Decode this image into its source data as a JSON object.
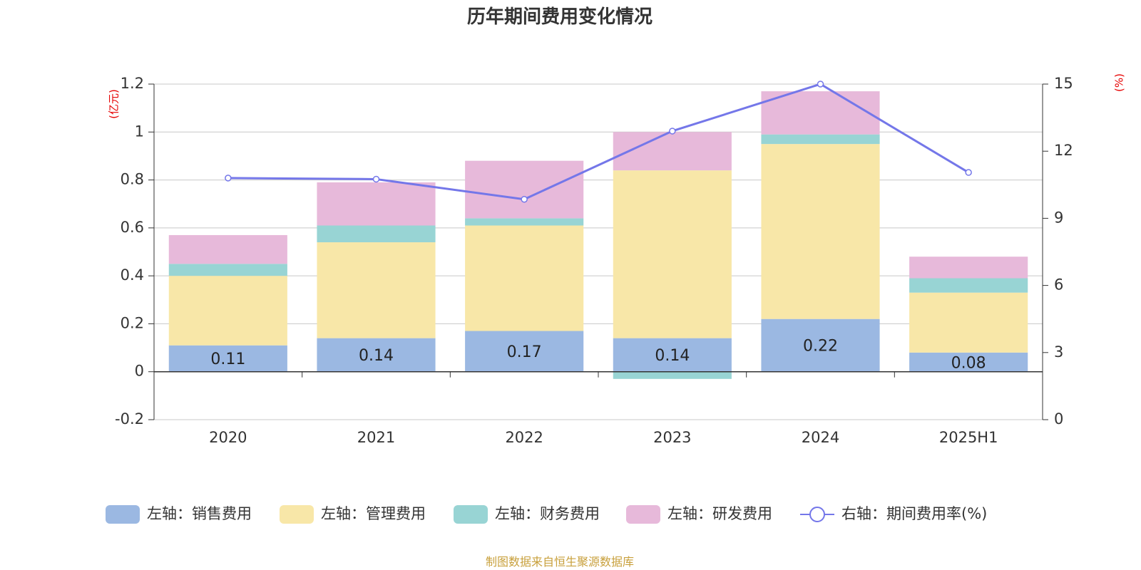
{
  "chart_data": {
    "type": "bar",
    "title": "历年期间费用变化情况",
    "categories": [
      "2020",
      "2021",
      "2022",
      "2023",
      "2024",
      "2025H1"
    ],
    "left_axis": {
      "unit": "(亿元)",
      "ylim": [
        -0.2,
        1.2
      ],
      "ticks": [
        -0.2,
        0,
        0.2,
        0.4,
        0.6,
        0.8,
        1,
        1.2
      ],
      "tick_labels": [
        "-0.2",
        "0",
        "0.2",
        "0.4",
        "0.6",
        "0.8",
        "1",
        "1.2"
      ]
    },
    "right_axis": {
      "unit": "(%)",
      "ylim": [
        0,
        15
      ],
      "ticks": [
        0,
        3,
        6,
        9,
        12,
        15
      ],
      "tick_labels": [
        "0",
        "3",
        "6",
        "9",
        "12",
        "15"
      ]
    },
    "series": [
      {
        "name": "左轴：销售费用",
        "type": "bar",
        "axis": "left",
        "color": "#9bb8e2",
        "values": [
          0.11,
          0.14,
          0.17,
          0.14,
          0.22,
          0.08
        ],
        "labels": [
          "0.11",
          "0.14",
          "0.17",
          "0.14",
          "0.22",
          "0.08"
        ]
      },
      {
        "name": "左轴：管理费用",
        "type": "bar",
        "axis": "left",
        "color": "#f8e7a8",
        "values": [
          0.29,
          0.4,
          0.44,
          0.7,
          0.73,
          0.25
        ]
      },
      {
        "name": "左轴：财务费用",
        "type": "bar",
        "axis": "left",
        "color": "#98d4d4",
        "values": [
          0.05,
          0.07,
          0.03,
          -0.03,
          0.04,
          0.06
        ]
      },
      {
        "name": "左轴：研发费用",
        "type": "bar",
        "axis": "left",
        "color": "#e7b9da",
        "values": [
          0.12,
          0.18,
          0.24,
          0.16,
          0.18,
          0.09
        ]
      },
      {
        "name": "右轴：期间费用率(%)",
        "type": "line",
        "axis": "right",
        "color": "#7477e9",
        "values": [
          10.8,
          10.75,
          9.85,
          12.9,
          15.0,
          11.05
        ]
      }
    ],
    "grid": true,
    "legend_position": "bottom"
  },
  "source": "制图数据来自恒生聚源数据库"
}
